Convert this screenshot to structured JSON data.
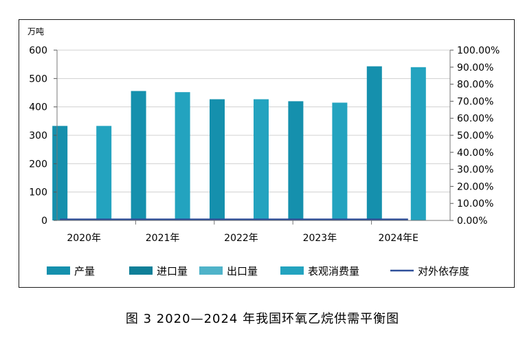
{
  "caption": "图 3  2020—2024 年我国环氧乙烷供需平衡图",
  "chart_data": {
    "type": "bar",
    "unit_label": "万吨",
    "categories": [
      "2020年",
      "2021年",
      "2022年",
      "2023年",
      "2024年E"
    ],
    "ylim": [
      0,
      600
    ],
    "yticks": [
      "0",
      "100",
      "200",
      "300",
      "400",
      "500",
      "600"
    ],
    "y2lim": [
      0,
      100
    ],
    "y2ticks": [
      "0.00%",
      "10.00%",
      "20.00%",
      "30.00%",
      "40.00%",
      "50.00%",
      "60.00%",
      "70.00%",
      "80.00%",
      "90.00%",
      "100.00%"
    ],
    "grid": true,
    "legend_position": "bottom",
    "series": [
      {
        "name": "产量",
        "type": "bar",
        "axis": "left",
        "color": "#1590ad",
        "values": [
          333,
          456,
          427,
          420,
          543
        ]
      },
      {
        "name": "进口量",
        "type": "bar",
        "axis": "left",
        "color": "#0f7f98",
        "values": [
          0,
          0,
          0,
          0,
          0
        ]
      },
      {
        "name": "出口量",
        "type": "bar",
        "axis": "left",
        "color": "#4fb3c9",
        "values": [
          0,
          0,
          0,
          0,
          0
        ]
      },
      {
        "name": "表观消费量",
        "type": "bar",
        "axis": "left",
        "color": "#23a3bf",
        "values": [
          333,
          452,
          427,
          415,
          540
        ]
      },
      {
        "name": "对外依存度",
        "type": "line",
        "axis": "right",
        "color": "#2e4f9a",
        "values": [
          0,
          0,
          0,
          0,
          0
        ]
      }
    ]
  }
}
